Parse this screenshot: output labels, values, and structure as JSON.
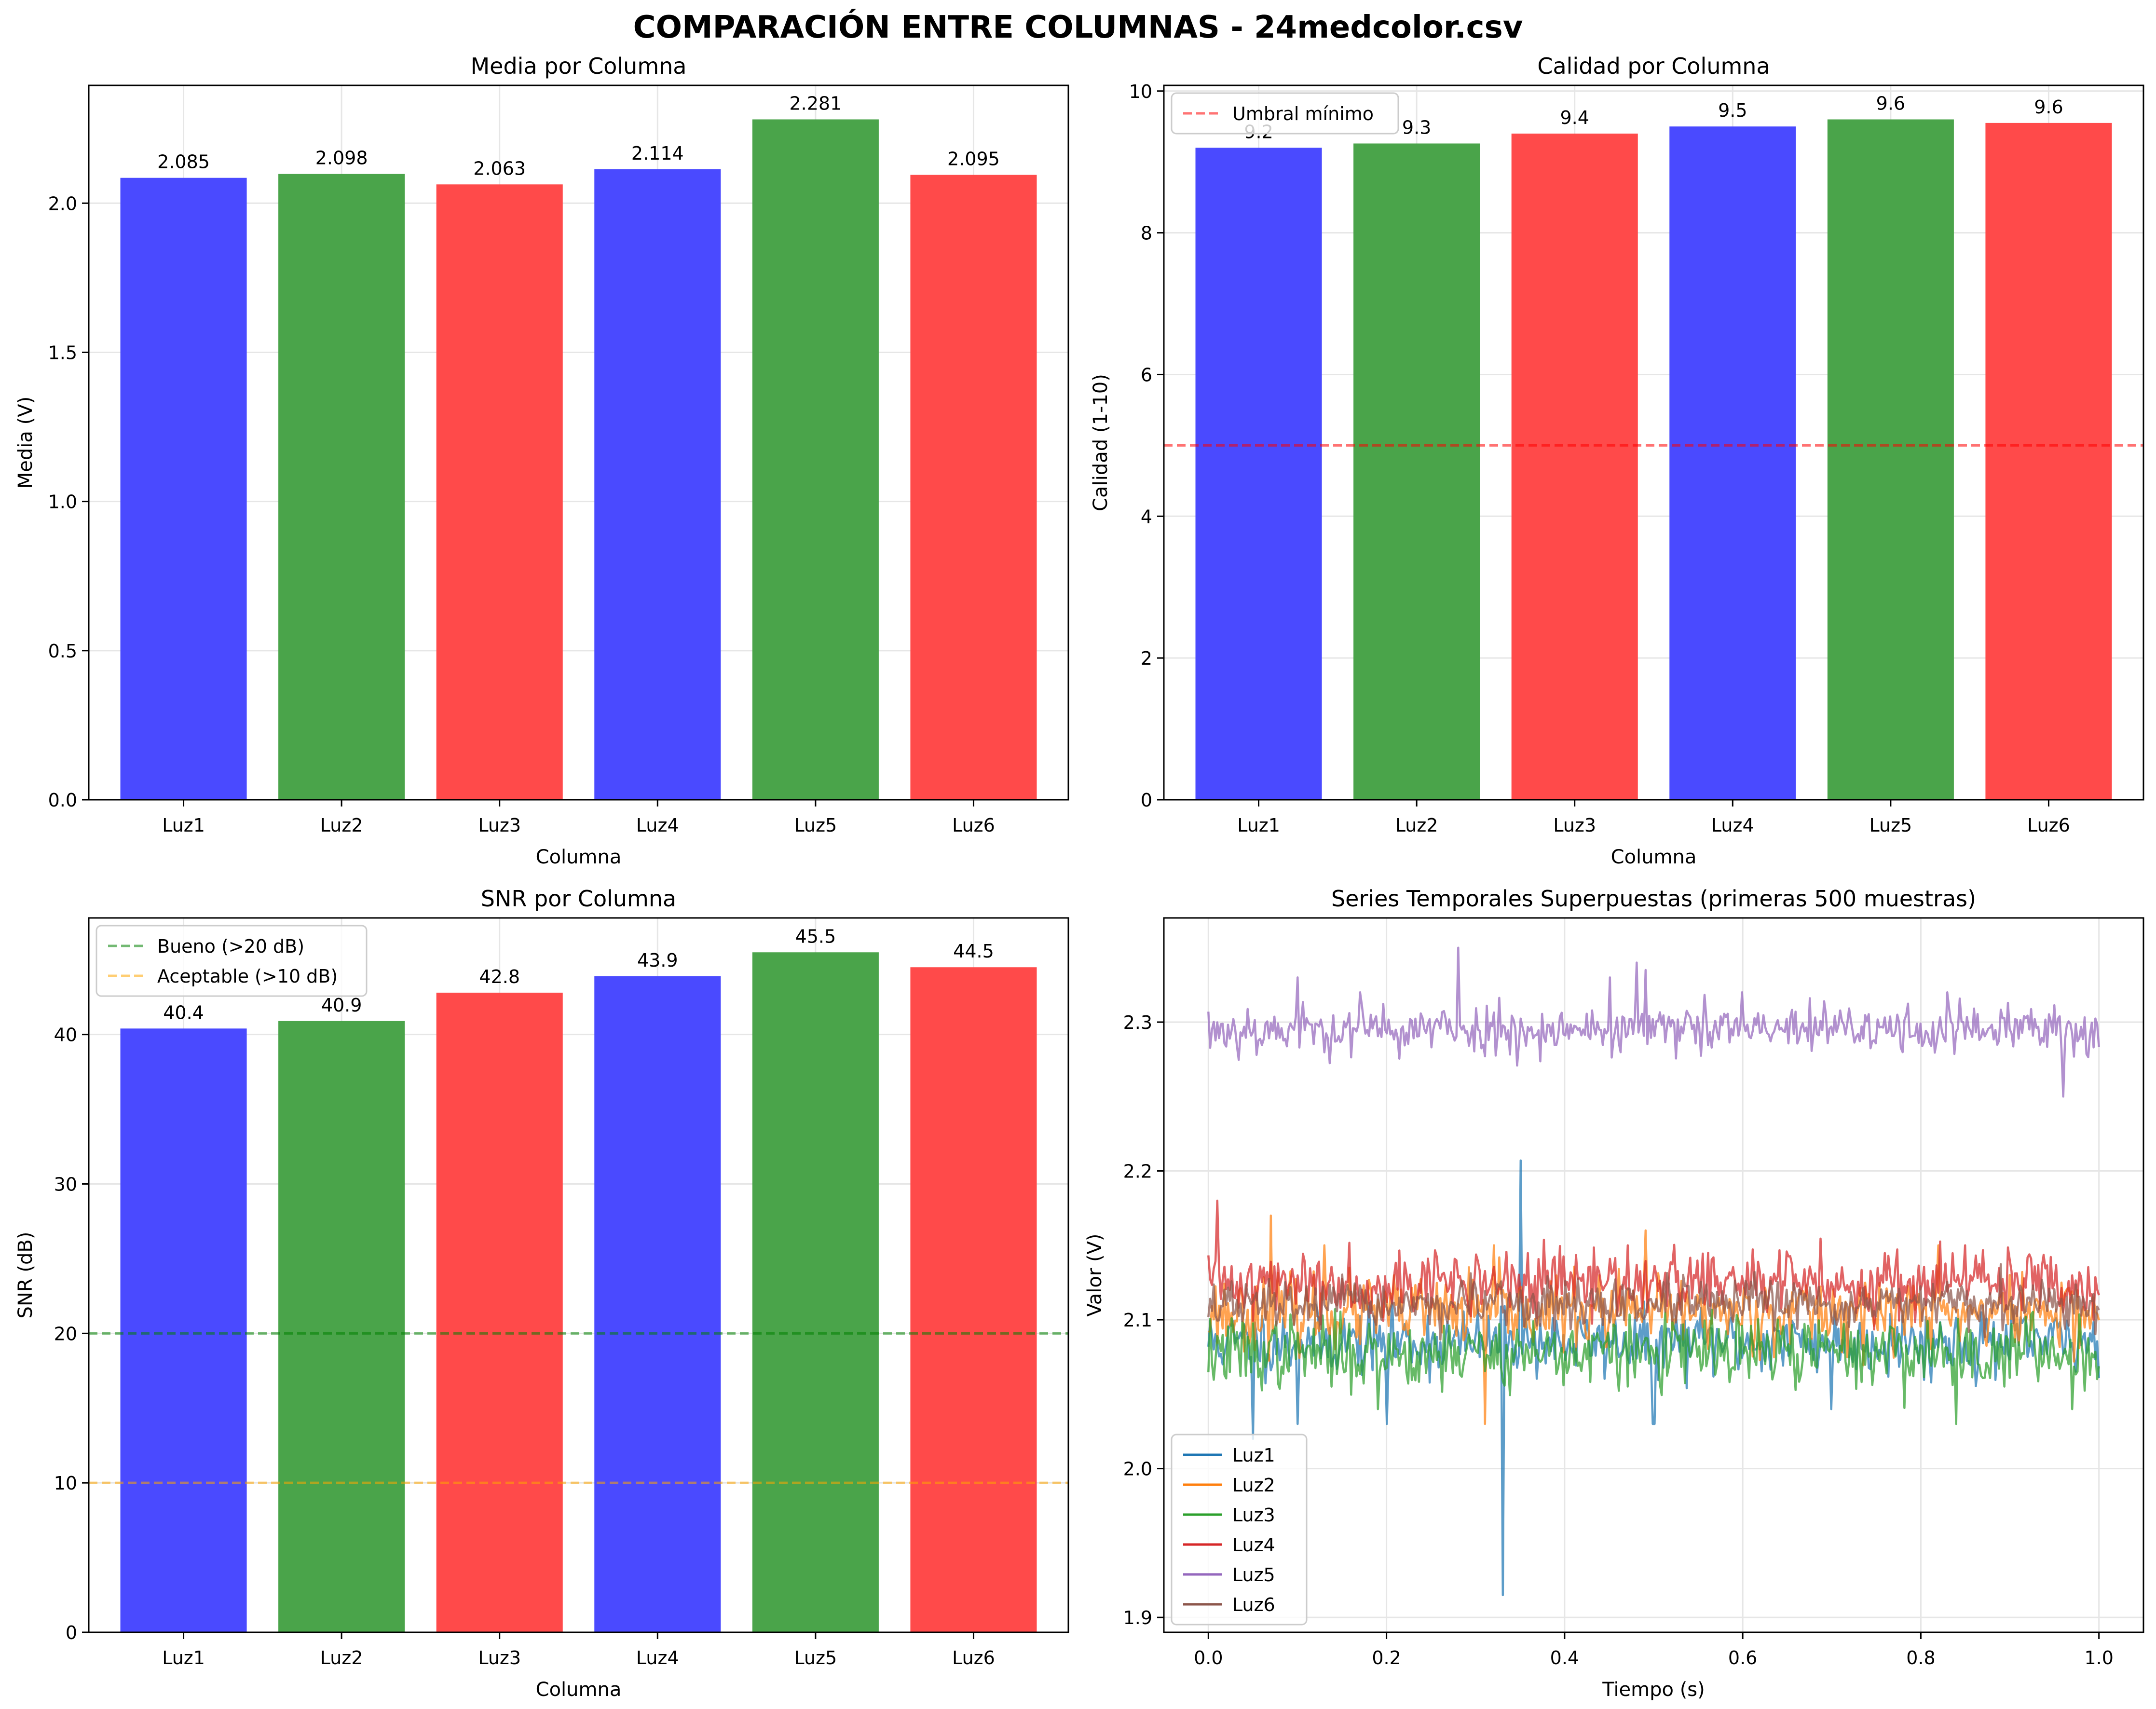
{
  "suptitle": "COMPARACIÓN ENTRE COLUMNAS - 24medcolor.csv",
  "colors": {
    "blue": "#4a4aff",
    "green": "#4aa44a",
    "red": "#ff4a4a",
    "grid": "#e6e6e6",
    "luz1": "#1f77b4",
    "luz2": "#ff7f0e",
    "luz3": "#2ca02c",
    "luz4": "#d62728",
    "luz5": "#9467bd",
    "luz6": "#8c564b"
  },
  "chart_data": [
    {
      "type": "bar",
      "title": "Media por Columna",
      "xlabel": "Columna",
      "ylabel": "Media (V)",
      "categories": [
        "Luz1",
        "Luz2",
        "Luz3",
        "Luz4",
        "Luz5",
        "Luz6"
      ],
      "values": [
        2.085,
        2.098,
        2.063,
        2.114,
        2.281,
        2.095
      ],
      "labels": [
        "2.085",
        "2.098",
        "2.063",
        "2.114",
        "2.281",
        "2.095"
      ],
      "bar_colors": [
        "blue",
        "green",
        "red",
        "blue",
        "green",
        "red"
      ],
      "ylim": [
        0,
        2.395
      ],
      "yticks": [
        0.0,
        0.5,
        1.0,
        1.5,
        2.0
      ],
      "ytick_labels": [
        "0.0",
        "0.5",
        "1.0",
        "1.5",
        "2.0"
      ],
      "grid": true
    },
    {
      "type": "bar",
      "title": "Calidad por Columna",
      "xlabel": "Columna",
      "ylabel": "Calidad (1-10)",
      "categories": [
        "Luz1",
        "Luz2",
        "Luz3",
        "Luz4",
        "Luz5",
        "Luz6"
      ],
      "values": [
        9.2,
        9.26,
        9.4,
        9.5,
        9.6,
        9.55
      ],
      "labels": [
        "9.2",
        "9.3",
        "9.4",
        "9.5",
        "9.6",
        "9.6"
      ],
      "bar_colors": [
        "blue",
        "green",
        "red",
        "blue",
        "green",
        "red"
      ],
      "ylim": [
        0,
        10.08
      ],
      "yticks": [
        0,
        2,
        4,
        6,
        8,
        10
      ],
      "ytick_labels": [
        "0",
        "2",
        "4",
        "6",
        "8",
        "10"
      ],
      "hlines": [
        {
          "y": 5,
          "color": "#ff0000",
          "label": "Umbral mínimo"
        }
      ],
      "legend": "top-left",
      "grid": true
    },
    {
      "type": "bar",
      "title": "SNR por Columna",
      "xlabel": "Columna",
      "ylabel": "SNR (dB)",
      "categories": [
        "Luz1",
        "Luz2",
        "Luz3",
        "Luz4",
        "Luz5",
        "Luz6"
      ],
      "values": [
        40.4,
        40.9,
        42.8,
        43.9,
        45.5,
        44.5
      ],
      "labels": [
        "40.4",
        "40.9",
        "42.8",
        "43.9",
        "45.5",
        "44.5"
      ],
      "bar_colors": [
        "blue",
        "green",
        "red",
        "blue",
        "green",
        "red"
      ],
      "ylim": [
        0,
        47.8
      ],
      "yticks": [
        0,
        10,
        20,
        30,
        40
      ],
      "ytick_labels": [
        "0",
        "10",
        "20",
        "30",
        "40"
      ],
      "hlines": [
        {
          "y": 20,
          "color": "#008000",
          "label": "Bueno (>20 dB)"
        },
        {
          "y": 10,
          "color": "#ffa500",
          "label": "Aceptable (>10 dB)"
        }
      ],
      "legend": "top-left",
      "grid": true
    },
    {
      "type": "line",
      "title": "Series Temporales Superpuestas (primeras 500 muestras)",
      "xlabel": "Tiempo (s)",
      "ylabel": "Valor (V)",
      "xlim": [
        -0.05,
        1.05
      ],
      "ylim": [
        1.89,
        2.37
      ],
      "xticks": [
        0.0,
        0.2,
        0.4,
        0.6,
        0.8,
        1.0
      ],
      "xtick_labels": [
        "0.0",
        "0.2",
        "0.4",
        "0.6",
        "0.8",
        "1.0"
      ],
      "yticks": [
        1.9,
        2.0,
        2.1,
        2.2,
        2.3
      ],
      "ytick_labels": [
        "1.9",
        "2.0",
        "2.1",
        "2.2",
        "2.3"
      ],
      "legend": "bottom-left",
      "grid": true,
      "series": [
        {
          "name": "Luz1",
          "color": "luz1",
          "mean": 2.085,
          "noise": 0.011,
          "seed": 11,
          "spikes": [
            [
              0.05,
              2.02
            ],
            [
              0.1,
              2.03
            ],
            [
              0.2,
              2.03
            ],
            [
              0.33,
              1.915
            ],
            [
              0.35,
              2.207
            ],
            [
              0.5,
              2.03
            ],
            [
              0.7,
              2.04
            ]
          ]
        },
        {
          "name": "Luz2",
          "color": "luz2",
          "mean": 2.105,
          "noise": 0.012,
          "seed": 23,
          "spikes": [
            [
              0.07,
              2.17
            ],
            [
              0.13,
              2.15
            ],
            [
              0.31,
              2.03
            ],
            [
              0.32,
              2.15
            ],
            [
              0.49,
              2.16
            ],
            [
              0.82,
              2.15
            ]
          ]
        },
        {
          "name": "Luz3",
          "color": "luz3",
          "mean": 2.078,
          "noise": 0.012,
          "seed": 37,
          "spikes": [
            [
              0.19,
              2.04
            ],
            [
              0.84,
              2.03
            ],
            [
              0.97,
              2.04
            ]
          ]
        },
        {
          "name": "Luz4",
          "color": "luz4",
          "mean": 2.125,
          "noise": 0.011,
          "seed": 41,
          "spikes": [
            [
              0.01,
              2.18
            ],
            [
              0.47,
              2.15
            ],
            [
              0.85,
              2.15
            ]
          ]
        },
        {
          "name": "Luz5",
          "color": "luz5",
          "mean": 2.295,
          "noise": 0.0085,
          "seed": 53,
          "spikes": [
            [
              0.1,
              2.33
            ],
            [
              0.17,
              2.32
            ],
            [
              0.28,
              2.35
            ],
            [
              0.45,
              2.33
            ],
            [
              0.48,
              2.34
            ],
            [
              0.49,
              2.335
            ],
            [
              0.6,
              2.32
            ],
            [
              0.83,
              2.32
            ],
            [
              0.96,
              2.25
            ]
          ]
        },
        {
          "name": "Luz6",
          "color": "luz6",
          "mean": 2.11,
          "noise": 0.008,
          "seed": 67,
          "spikes": []
        }
      ]
    }
  ]
}
